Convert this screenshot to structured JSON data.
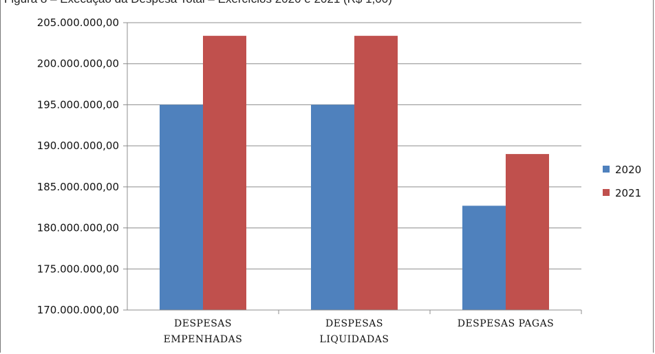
{
  "caption": "Figura 8 – Execução da Despesa Total – Exercícios 2020 e 2021 (R$ 1,00)",
  "chart_data": {
    "type": "bar",
    "categories": [
      [
        "DESPESAS",
        "EMPENHADAS"
      ],
      [
        "DESPESAS",
        "LIQUIDADAS"
      ],
      [
        "DESPESAS PAGAS"
      ]
    ],
    "series": [
      {
        "name": "2020",
        "color": "#4f81bd",
        "values": [
          195000000,
          195000000,
          182700000
        ]
      },
      {
        "name": "2021",
        "color": "#c0504d",
        "values": [
          203400000,
          203400000,
          189000000
        ]
      }
    ],
    "ylim": [
      170000000,
      205000000
    ],
    "yticks": [
      "170.000.000,00",
      "175.000.000,00",
      "180.000.000,00",
      "185.000.000,00",
      "190.000.000,00",
      "195.000.000,00",
      "200.000.000,00",
      "205.000.000,00"
    ],
    "ytick_values": [
      170000000,
      175000000,
      180000000,
      185000000,
      190000000,
      195000000,
      200000000,
      205000000
    ],
    "grid": true,
    "legend": "right"
  }
}
